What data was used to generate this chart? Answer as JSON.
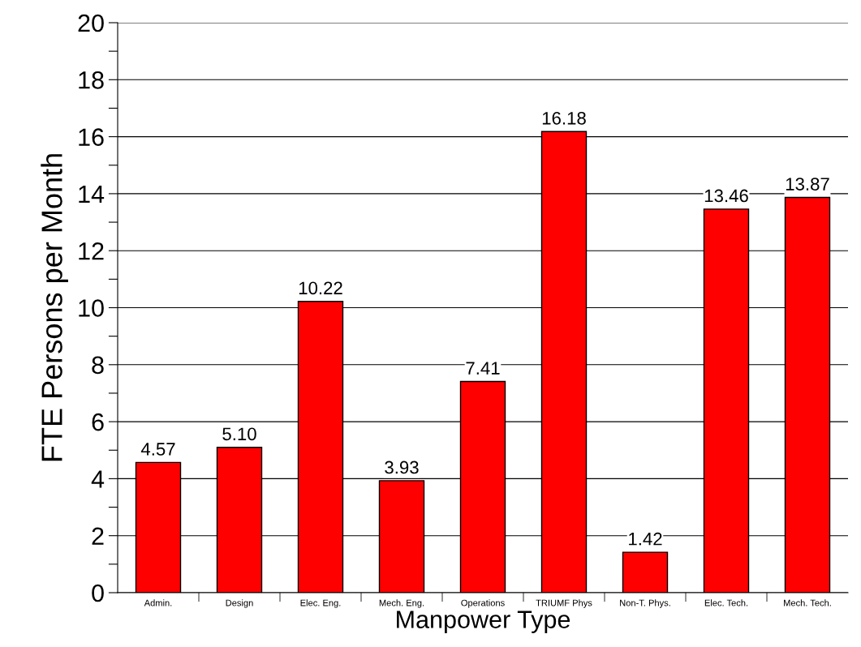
{
  "chart_data": {
    "type": "bar",
    "xlabel": "Manpower Type",
    "ylabel": "FTE Persons per Month",
    "categories": [
      "Admin.",
      "Design",
      "Elec. Eng.",
      "Mech. Eng.",
      "Operations",
      "TRIUMF Phys",
      "Non-T. Phys.",
      "Elec. Tech.",
      "Mech. Tech."
    ],
    "values": [
      4.57,
      5.1,
      10.22,
      3.93,
      7.41,
      16.18,
      1.42,
      13.46,
      13.87
    ],
    "value_labels": [
      "4.57",
      "5.10",
      "10.22",
      "3.93",
      "7.41",
      "16.18",
      "1.42",
      "13.46",
      "13.87"
    ],
    "color": "#ff0000",
    "ylim": [
      0,
      20
    ],
    "yticks": [
      0,
      {
        "value": 1,
        "label": null
      },
      2,
      {
        "value": 3,
        "label": null
      },
      4,
      {
        "value": 5,
        "label": null
      },
      6,
      {
        "value": 7,
        "label": null
      },
      8,
      {
        "value": 9,
        "label": null
      },
      10,
      {
        "value": 11,
        "label": null
      },
      12,
      {
        "value": 13,
        "label": null
      },
      14,
      {
        "value": 15,
        "label": null
      },
      16,
      {
        "value": 17,
        "label": null
      },
      18,
      {
        "value": 19,
        "label": null
      },
      20
    ],
    "grid": "y"
  }
}
